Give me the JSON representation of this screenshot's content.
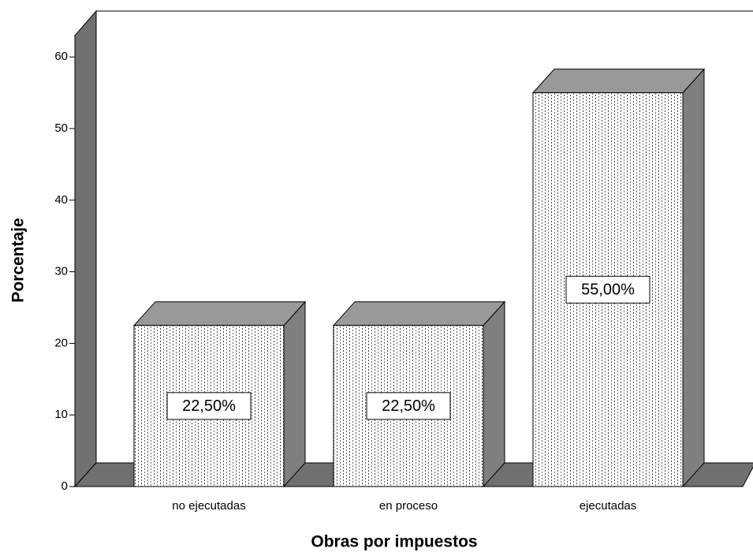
{
  "chart_data": {
    "type": "bar3d",
    "x_label": "Obras por impuestos",
    "y_label": "Porcentaje",
    "categories": [
      "no ejecutadas",
      "en proceso",
      "ejecutadas"
    ],
    "values": [
      22.5,
      22.5,
      55
    ],
    "value_labels": [
      "22,50%",
      "22,50%",
      "55,00%"
    ],
    "ylim": [
      0,
      63
    ],
    "yticks": [
      0,
      10,
      20,
      30,
      40,
      50,
      60
    ],
    "color": "#ffffff",
    "side_color": "#7f7f7f",
    "top_color": "#999999"
  }
}
